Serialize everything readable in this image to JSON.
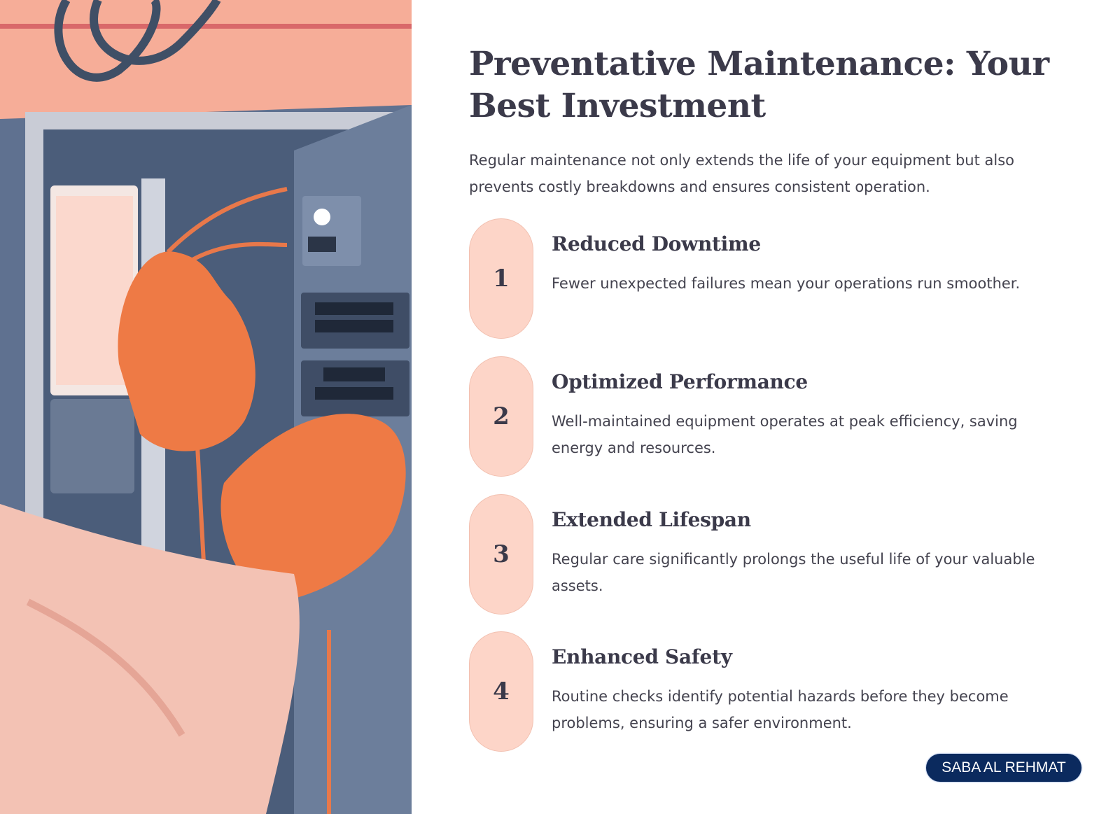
{
  "slide": {
    "title": "Preventative Maintenance: Your Best Investment",
    "intro": "Regular maintenance not only extends the life of your equipment but also prevents costly breakdowns and ensures consistent operation.",
    "items": [
      {
        "number": "1",
        "heading": "Reduced Downtime",
        "text": "Fewer unexpected failures mean your operations run smoother."
      },
      {
        "number": "2",
        "heading": "Optimized Performance",
        "text": "Well-maintained equipment operates at peak efficiency, saving energy and resources."
      },
      {
        "number": "3",
        "heading": "Extended Lifespan",
        "text": "Regular care significantly prolongs the useful life of your valuable assets."
      },
      {
        "number": "4",
        "heading": "Enhanced Safety",
        "text": "Routine checks identify potential hazards before they become problems, ensuring a safer environment."
      }
    ],
    "badge": "SABA AL REHMAT"
  },
  "colors": {
    "pill": "#fdd5c8",
    "text": "#3b3a4a",
    "badge": "#0b2a5e",
    "glove": "#ee7a45",
    "panel": "#5f7190"
  }
}
